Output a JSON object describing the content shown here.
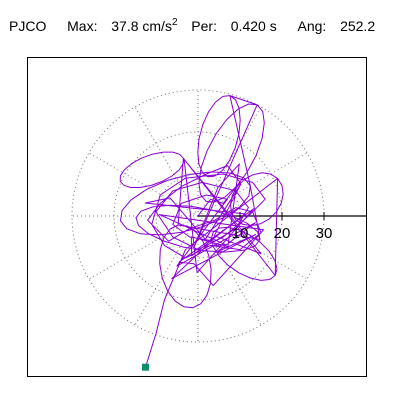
{
  "header": {
    "station": "PJCO",
    "max_label": "Max:",
    "max_value": "37.8 cm/s",
    "max_exponent": "2",
    "period_label": "Per:",
    "period_value": "0.420 s",
    "angle_label": "Ang:",
    "angle_value": "252.2"
  },
  "colors": {
    "trace": "#8a00d4",
    "marker": "#0a8f6a",
    "grid": "#707070",
    "axis": "#000000"
  },
  "chart_data": {
    "type": "polar particle-motion plot",
    "radial_ticks": [
      "10",
      "20",
      "30"
    ],
    "radial_tick_values": [
      10,
      20,
      30
    ],
    "grid_circles": [
      10,
      20,
      30
    ],
    "spoke_step_deg": 30,
    "max_amplitude": 37.8,
    "unit": "cm/s²",
    "period_s": 0.42,
    "angle_deg": 252.2,
    "final_marker_point": [
      -12.5,
      -36.0
    ],
    "trace_description_points": [
      [
        0,
        0
      ],
      [
        3,
        4
      ],
      [
        6,
        3
      ],
      [
        10,
        8
      ],
      [
        7,
        12
      ],
      [
        2,
        10
      ],
      [
        -4,
        7
      ],
      [
        -9,
        3
      ],
      [
        -12,
        -1
      ],
      [
        -7,
        -6
      ],
      [
        -2,
        -3
      ],
      [
        4,
        -1
      ],
      [
        9,
        2
      ],
      [
        13,
        1
      ],
      [
        15,
        -4
      ],
      [
        10,
        -8
      ],
      [
        3,
        -7
      ],
      [
        -3,
        -10
      ],
      [
        -8,
        -7
      ],
      [
        -11,
        -2
      ],
      [
        -9,
        5
      ],
      [
        -3,
        9
      ],
      [
        6,
        10
      ],
      [
        13,
        8
      ],
      [
        16,
        4
      ],
      [
        12,
        0
      ],
      [
        6,
        -5
      ],
      [
        0,
        -8
      ],
      [
        -6,
        -5
      ],
      [
        -10,
        1
      ],
      [
        -6,
        6
      ],
      [
        1,
        8
      ],
      [
        9,
        6
      ],
      [
        12,
        2
      ],
      [
        9,
        -3
      ],
      [
        4,
        -6
      ],
      [
        -2,
        -5
      ],
      [
        -6,
        -2
      ],
      [
        -4,
        3
      ],
      [
        2,
        5
      ],
      [
        7,
        4
      ]
    ]
  }
}
